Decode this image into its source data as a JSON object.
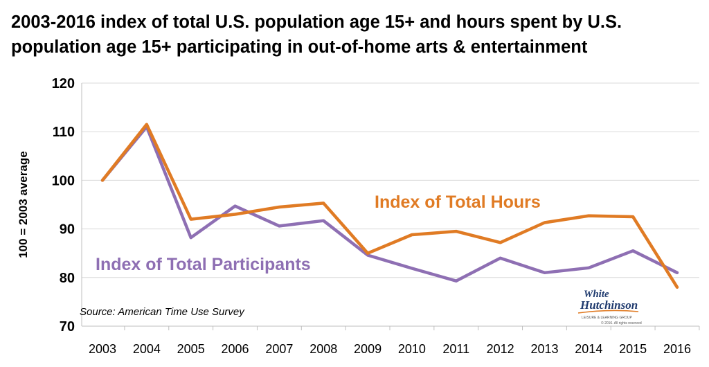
{
  "title_line1": "2003-2016 index of total U.S. population age 15+ and hours spent by U.S.",
  "title_line2": "population age 15+ participating in out-of-home arts & entertainment",
  "source": "Source: American Time Use Survey",
  "logo": {
    "line1": "White",
    "line2": "Hutchinson",
    "tagline": "LEISURE & LEARNING GROUP",
    "copyright": "© 2016. All rights reserved"
  },
  "chart_data": {
    "type": "line",
    "x": [
      "2003",
      "2004",
      "2005",
      "2006",
      "2007",
      "2008",
      "2009",
      "2010",
      "2011",
      "2012",
      "2013",
      "2014",
      "2015",
      "2016"
    ],
    "ylabel": "100 = 2003 average",
    "ylim": [
      70,
      120
    ],
    "yticks": [
      "70",
      "80",
      "90",
      "100",
      "110",
      "120"
    ],
    "grid": true,
    "series": [
      {
        "name": "Index of Total Hours",
        "color": "#e07b24",
        "values": [
          100,
          111.5,
          92,
          93,
          94.5,
          95.3,
          85,
          88.8,
          89.5,
          87.2,
          91.3,
          92.7,
          92.5,
          78
        ]
      },
      {
        "name": "Index of Total Participants",
        "color": "#8e6fb3",
        "values": [
          100,
          111,
          88.2,
          94.7,
          90.6,
          91.7,
          84.6,
          81.9,
          79.3,
          84,
          81,
          82,
          85.5,
          81
        ]
      }
    ]
  }
}
